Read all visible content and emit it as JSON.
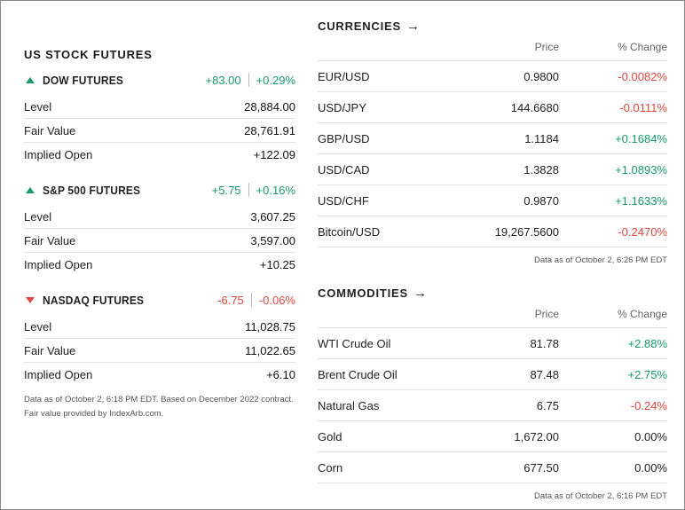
{
  "futures": {
    "title": "US STOCK FUTURES",
    "blocks": [
      {
        "name": "DOW FUTURES",
        "direction": "up",
        "change": "+83.00",
        "change_pct": "+0.29%",
        "rows": [
          {
            "label": "Level",
            "value": "28,884.00"
          },
          {
            "label": "Fair Value",
            "value": "28,761.91"
          },
          {
            "label": "Implied Open",
            "value": "+122.09"
          }
        ]
      },
      {
        "name": "S&P 500 FUTURES",
        "direction": "up",
        "change": "+5.75",
        "change_pct": "+0.16%",
        "rows": [
          {
            "label": "Level",
            "value": "3,607.25"
          },
          {
            "label": "Fair Value",
            "value": "3,597.00"
          },
          {
            "label": "Implied Open",
            "value": "+10.25"
          }
        ]
      },
      {
        "name": "NASDAQ FUTURES",
        "direction": "down",
        "change": "-6.75",
        "change_pct": "-0.06%",
        "rows": [
          {
            "label": "Level",
            "value": "11,028.75"
          },
          {
            "label": "Fair Value",
            "value": "11,022.65"
          },
          {
            "label": "Implied Open",
            "value": "+6.10"
          }
        ]
      }
    ],
    "note": "Data as of October 2, 6:18 PM EDT. Based on December 2022 contract. Fair value provided by IndexArb.com."
  },
  "currencies": {
    "title": "CURRENCIES",
    "col_price": "Price",
    "col_change": "% Change",
    "rows": [
      {
        "name": "EUR/USD",
        "price": "0.9800",
        "change": "-0.0082%"
      },
      {
        "name": "USD/JPY",
        "price": "144.6680",
        "change": "-0.0111%"
      },
      {
        "name": "GBP/USD",
        "price": "1.1184",
        "change": "+0.1684%"
      },
      {
        "name": "USD/CAD",
        "price": "1.3828",
        "change": "+1.0893%"
      },
      {
        "name": "USD/CHF",
        "price": "0.9870",
        "change": "+1.1633%"
      },
      {
        "name": "Bitcoin/USD",
        "price": "19,267.5600",
        "change": "-0.2470%"
      }
    ],
    "note": "Data as of October 2, 6:26 PM EDT"
  },
  "commodities": {
    "title": "COMMODITIES",
    "col_price": "Price",
    "col_change": "% Change",
    "rows": [
      {
        "name": "WTI Crude Oil",
        "price": "81.78",
        "change": "+2.88%"
      },
      {
        "name": "Brent Crude Oil",
        "price": "87.48",
        "change": "+2.75%"
      },
      {
        "name": "Natural Gas",
        "price": "6.75",
        "change": "-0.24%"
      },
      {
        "name": "Gold",
        "price": "1,672.00",
        "change": "0.00%"
      },
      {
        "name": "Corn",
        "price": "677.50",
        "change": "0.00%"
      }
    ],
    "note": "Data as of October 2, 6:16 PM EDT"
  },
  "colors": {
    "positive": "#1a9a6a",
    "negative": "#e0483e",
    "neutral": "#222222"
  }
}
